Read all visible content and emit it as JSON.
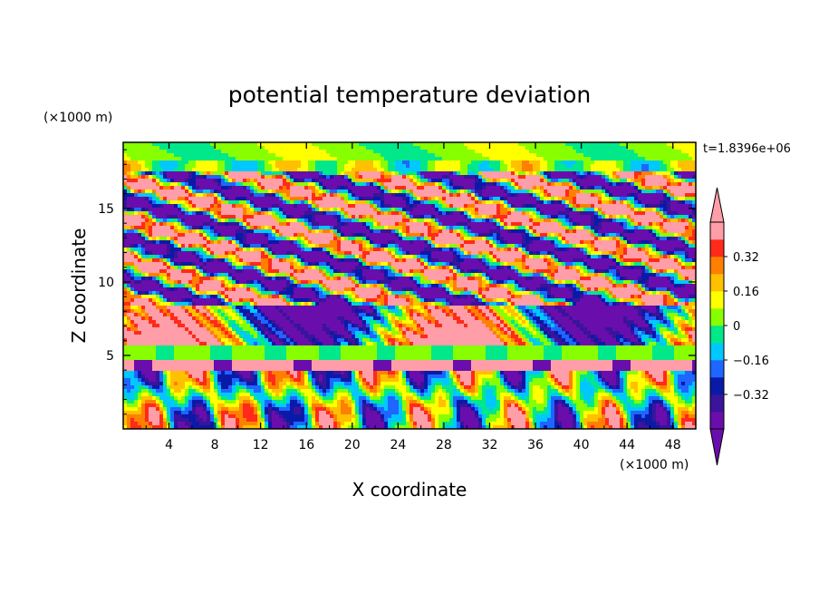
{
  "chart_data": {
    "type": "heatmap",
    "title": "potential temperature deviation",
    "xlabel": "X coordinate",
    "ylabel": "Z coordinate",
    "x_unit": "(×1000 m)",
    "y_unit": "(×1000 m)",
    "time_label": "t=1.8396e+06",
    "xlim": [
      0,
      50
    ],
    "ylim": [
      0,
      19.5
    ],
    "x_ticks": [
      4,
      8,
      12,
      16,
      20,
      24,
      28,
      32,
      36,
      40,
      44,
      48
    ],
    "y_ticks": [
      5,
      10,
      15
    ],
    "colorbar": {
      "levels": [
        -0.48,
        -0.4,
        -0.32,
        -0.24,
        -0.16,
        -0.08,
        0,
        0.08,
        0.16,
        0.24,
        0.32,
        0.4,
        0.48
      ],
      "tick_labels": [
        "0.32",
        "0.16",
        "0",
        "−0.16",
        "−0.32"
      ],
      "colors": [
        "#6a0dad",
        "#3a149a",
        "#0a1aa8",
        "#1e66ff",
        "#00c8ff",
        "#00e88a",
        "#88ff00",
        "#ffff00",
        "#ffc000",
        "#ff8000",
        "#ff2a1a",
        "#ff9ea8"
      ],
      "over_color": "#ff9ea8",
      "under_color": "#6a0dad"
    },
    "bands": [
      {
        "z": [
          0.0,
          4.0
        ],
        "pattern": "vertical plumes",
        "dominant": [
          "#ff8000",
          "#ffff00",
          "#00c8ff",
          "#6a0dad"
        ]
      },
      {
        "z": [
          4.0,
          4.8
        ],
        "pattern": "layer",
        "dominant": [
          "#ff9ea8",
          "#6a0dad"
        ]
      },
      {
        "z": [
          4.8,
          5.8
        ],
        "pattern": "stable layer",
        "dominant": [
          "#88ff00",
          "#00e88a"
        ]
      },
      {
        "z": [
          5.8,
          8.5
        ],
        "pattern": "layer",
        "dominant": [
          "#ff9ea8",
          "#6a0dad"
        ]
      },
      {
        "z": [
          8.5,
          17.5
        ],
        "pattern": "tilted streaks",
        "dominant": [
          "#6a0dad",
          "#ff9ea8",
          "#00c8ff",
          "#ffff00"
        ]
      },
      {
        "z": [
          17.5,
          19.5
        ],
        "pattern": "smooth",
        "dominant": [
          "#88ff00",
          "#00e88a"
        ]
      }
    ]
  }
}
